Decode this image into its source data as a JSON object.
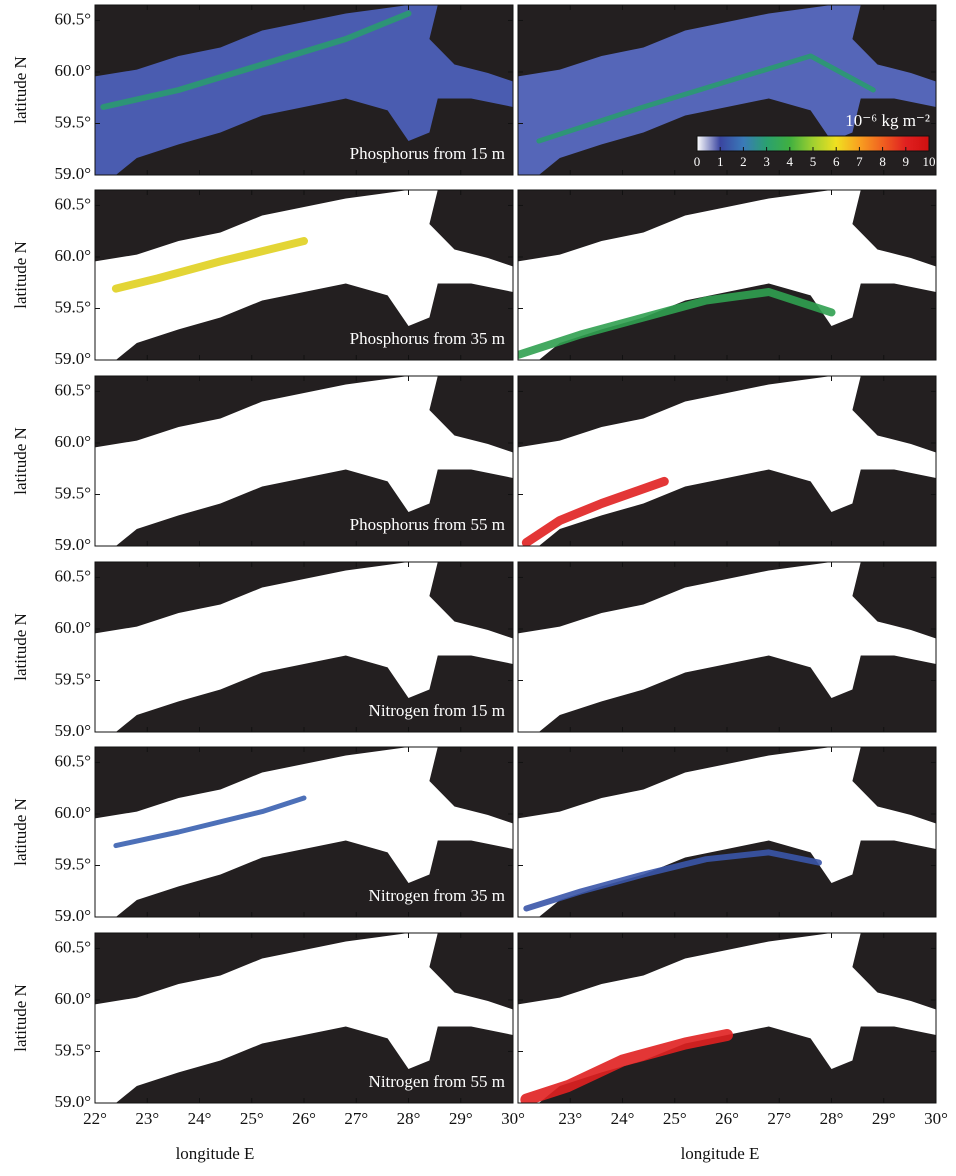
{
  "axes": {
    "ylabel": "latitude N",
    "xlabel": "longitude E",
    "xlim": [
      22,
      30
    ],
    "ylim": [
      59.0,
      60.65
    ],
    "xticks": [
      {
        "value": 22,
        "label": "22°"
      },
      {
        "value": 23,
        "label": "23°"
      },
      {
        "value": 24,
        "label": "24°"
      },
      {
        "value": 25,
        "label": "25°"
      },
      {
        "value": 26,
        "label": "26°"
      },
      {
        "value": 27,
        "label": "27°"
      },
      {
        "value": 28,
        "label": "28°"
      },
      {
        "value": 29,
        "label": "29°"
      },
      {
        "value": 30,
        "label": "30°"
      }
    ],
    "yticks": [
      {
        "value": 59.0,
        "label": "59.0°"
      },
      {
        "value": 59.5,
        "label": "59.5°"
      },
      {
        "value": 60.0,
        "label": "60.0°"
      },
      {
        "value": 60.5,
        "label": "60.5°"
      }
    ]
  },
  "rows": [
    {
      "label": "Phosphorus from 15 m"
    },
    {
      "label": "Phosphorus from 35 m"
    },
    {
      "label": "Phosphorus from 55 m"
    },
    {
      "label": "Nitrogen from 15 m"
    },
    {
      "label": "Nitrogen from 35 m"
    },
    {
      "label": "Nitrogen from 55 m"
    }
  ],
  "colorbar": {
    "label": "10⁻⁶ kg m⁻²",
    "range": [
      0,
      10
    ],
    "ticks": [
      0,
      1,
      2,
      3,
      4,
      5,
      6,
      7,
      8,
      9,
      10
    ],
    "colors": [
      "#ffffff",
      "#3a45a0",
      "#3a7ab8",
      "#2aa070",
      "#40b040",
      "#a0d030",
      "#f0e020",
      "#f8a020",
      "#f06020",
      "#e02020",
      "#d01010"
    ]
  }
}
